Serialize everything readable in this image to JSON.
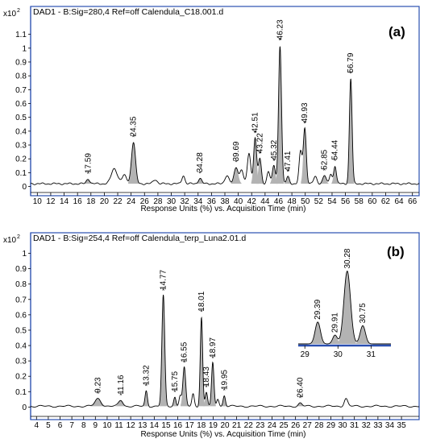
{
  "chart_data": [
    {
      "type": "line",
      "panel_label": "(a)",
      "title": "DAD1 - B:Sig=280,4 Ref=off Calendula_C18.001.d",
      "y_multiplier": "x10",
      "y_multiplier_exp": "2",
      "xlabel": "Response Units (%) vs. Acquisition Time (min)",
      "xlim": [
        9,
        67
      ],
      "ylim": [
        -0.02,
        1.22
      ],
      "x_ticks": [
        "10",
        "12",
        "14",
        "16",
        "18",
        "20",
        "22",
        "24",
        "26",
        "28",
        "30",
        "32",
        "34",
        "36",
        "38",
        "40",
        "42",
        "44",
        "46",
        "48",
        "50",
        "52",
        "54",
        "56",
        "58",
        "60",
        "62",
        "64",
        "66"
      ],
      "y_ticks": [
        "0",
        "0.1",
        "0.2",
        "0.3",
        "0.4",
        "0.5",
        "0.6",
        "0.7",
        "0.8",
        "0.9",
        "1",
        "1.1"
      ],
      "baseline": 0.02,
      "peaks": [
        {
          "rt": 17.59,
          "h": 0.035,
          "w": 0.25,
          "filled": true,
          "label": "17.59"
        },
        {
          "rt": 21.5,
          "h": 0.11,
          "w": 0.45,
          "filled": false,
          "label": ""
        },
        {
          "rt": 23.0,
          "h": 0.06,
          "w": 0.35,
          "filled": false,
          "label": ""
        },
        {
          "rt": 24.35,
          "h": 0.3,
          "w": 0.3,
          "filled": true,
          "label": "24.35"
        },
        {
          "rt": 27.6,
          "h": 0.03,
          "w": 0.3,
          "filled": false,
          "label": ""
        },
        {
          "rt": 31.8,
          "h": 0.06,
          "w": 0.22,
          "filled": false,
          "label": ""
        },
        {
          "rt": 34.28,
          "h": 0.04,
          "w": 0.25,
          "filled": true,
          "label": "34.28"
        },
        {
          "rt": 38.3,
          "h": 0.06,
          "w": 0.3,
          "filled": false,
          "label": ""
        },
        {
          "rt": 39.69,
          "h": 0.12,
          "w": 0.3,
          "filled": true,
          "label": "39.69"
        },
        {
          "rt": 40.5,
          "h": 0.1,
          "w": 0.25,
          "filled": false,
          "label": ""
        },
        {
          "rt": 41.6,
          "h": 0.22,
          "w": 0.25,
          "filled": false,
          "label": ""
        },
        {
          "rt": 42.51,
          "h": 0.33,
          "w": 0.22,
          "filled": true,
          "label": "42.51"
        },
        {
          "rt": 43.22,
          "h": 0.18,
          "w": 0.22,
          "filled": true,
          "label": "43.22"
        },
        {
          "rt": 44.5,
          "h": 0.09,
          "w": 0.22,
          "filled": false,
          "label": ""
        },
        {
          "rt": 45.32,
          "h": 0.13,
          "w": 0.22,
          "filled": true,
          "label": "45.32"
        },
        {
          "rt": 46.23,
          "h": 1.0,
          "w": 0.22,
          "filled": true,
          "label": "46.23"
        },
        {
          "rt": 47.41,
          "h": 0.05,
          "w": 0.22,
          "filled": true,
          "label": "47.41"
        },
        {
          "rt": 49.3,
          "h": 0.23,
          "w": 0.22,
          "filled": false,
          "label": ""
        },
        {
          "rt": 49.93,
          "h": 0.4,
          "w": 0.22,
          "filled": true,
          "label": "49.93"
        },
        {
          "rt": 51.5,
          "h": 0.05,
          "w": 0.25,
          "filled": false,
          "label": ""
        },
        {
          "rt": 52.85,
          "h": 0.06,
          "w": 0.25,
          "filled": true,
          "label": "52.85"
        },
        {
          "rt": 53.8,
          "h": 0.07,
          "w": 0.2,
          "filled": false,
          "label": ""
        },
        {
          "rt": 54.44,
          "h": 0.13,
          "w": 0.2,
          "filled": true,
          "label": "54.44"
        },
        {
          "rt": 56.79,
          "h": 0.76,
          "w": 0.2,
          "filled": true,
          "label": "56.79"
        }
      ]
    },
    {
      "type": "line",
      "panel_label": "(b)",
      "title": "DAD1 - B:Sig=254,4 Ref=off Calendula_terp_Luna2.01.d",
      "y_multiplier": "x10",
      "y_multiplier_exp": "2",
      "xlabel": "Response Units (%) vs. Acquisition Time (min)",
      "xlim": [
        3.5,
        36.5
      ],
      "ylim": [
        -0.04,
        1.05
      ],
      "x_ticks": [
        "4",
        "5",
        "6",
        "7",
        "8",
        "9",
        "10",
        "11",
        "12",
        "13",
        "14",
        "15",
        "16",
        "17",
        "18",
        "19",
        "20",
        "21",
        "22",
        "23",
        "24",
        "25",
        "26",
        "27",
        "28",
        "29",
        "30",
        "31",
        "32",
        "33",
        "34",
        "35"
      ],
      "y_ticks": [
        "0",
        "0.1",
        "0.2",
        "0.3",
        "0.4",
        "0.5",
        "0.6",
        "0.7",
        "0.8",
        "0.9",
        "1"
      ],
      "baseline": 0.005,
      "peaks": [
        {
          "rt": 9.23,
          "h": 0.05,
          "w": 0.25,
          "filled": true,
          "label": "9.23"
        },
        {
          "rt": 11.16,
          "h": 0.04,
          "w": 0.18,
          "filled": true,
          "label": "11.16"
        },
        {
          "rt": 13.32,
          "h": 0.1,
          "w": 0.1,
          "filled": true,
          "label": "13.32"
        },
        {
          "rt": 14.77,
          "h": 0.72,
          "w": 0.12,
          "filled": true,
          "label": "14.77"
        },
        {
          "rt": 15.75,
          "h": 0.06,
          "w": 0.1,
          "filled": true,
          "label": "15.75"
        },
        {
          "rt": 16.2,
          "h": 0.07,
          "w": 0.1,
          "filled": false,
          "label": ""
        },
        {
          "rt": 16.55,
          "h": 0.25,
          "w": 0.12,
          "filled": true,
          "label": "16.55"
        },
        {
          "rt": 17.3,
          "h": 0.08,
          "w": 0.1,
          "filled": false,
          "label": ""
        },
        {
          "rt": 18.01,
          "h": 0.58,
          "w": 0.1,
          "filled": true,
          "label": "18.01"
        },
        {
          "rt": 18.43,
          "h": 0.09,
          "w": 0.1,
          "filled": true,
          "label": "18.43"
        },
        {
          "rt": 18.97,
          "h": 0.28,
          "w": 0.1,
          "filled": true,
          "label": "18.97"
        },
        {
          "rt": 19.4,
          "h": 0.05,
          "w": 0.1,
          "filled": false,
          "label": ""
        },
        {
          "rt": 19.95,
          "h": 0.07,
          "w": 0.1,
          "filled": true,
          "label": "19.95"
        },
        {
          "rt": 26.4,
          "h": 0.02,
          "w": 0.15,
          "filled": true,
          "label": "26.40"
        },
        {
          "rt": 30.28,
          "h": 0.05,
          "w": 0.15,
          "filled": false,
          "label": ""
        }
      ],
      "inset": {
        "xlim": [
          28.8,
          31.6
        ],
        "ylim": [
          0,
          1.05
        ],
        "x_ticks": [
          "29",
          "30",
          "31"
        ],
        "peaks": [
          {
            "rt": 29.39,
            "h": 0.3,
            "w": 0.08,
            "filled": true,
            "label": "29.39"
          },
          {
            "rt": 29.91,
            "h": 0.12,
            "w": 0.07,
            "filled": true,
            "label": "29.91"
          },
          {
            "rt": 30.28,
            "h": 1.0,
            "w": 0.1,
            "filled": true,
            "label": "30.28"
          },
          {
            "rt": 30.75,
            "h": 0.25,
            "w": 0.08,
            "filled": true,
            "label": "30.75"
          }
        ]
      }
    }
  ]
}
